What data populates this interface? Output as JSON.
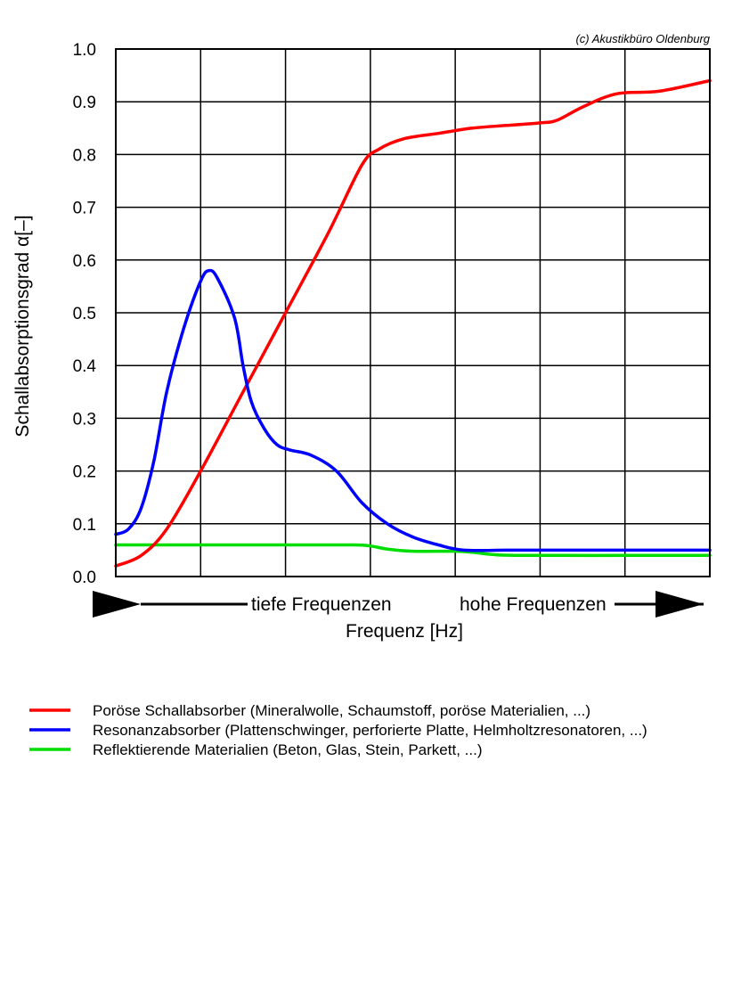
{
  "chart_data": {
    "type": "line",
    "copyright": "(c) Akustikbüro Oldenburg",
    "ylabel": "Schallabsorptionsgrad α[–]",
    "xlabel": "Frequenz [Hz]",
    "x_annotation_low": "tiefe Frequenzen",
    "x_annotation_high": "hohe Frequenzen",
    "xlim": [
      0,
      7
    ],
    "ylim": [
      0,
      1
    ],
    "yticks": [
      "0.0",
      "0.1",
      "0.2",
      "0.3",
      "0.4",
      "0.5",
      "0.6",
      "0.7",
      "0.8",
      "0.9",
      "1.0"
    ],
    "grid": true,
    "legend_position": "bottom-left",
    "series": [
      {
        "name": "Poröse Schallabsorber (Mineralwolle, Schaumstoff, poröse Materialien, ...)",
        "color": "#ff0000",
        "x": [
          0,
          0.3,
          0.6,
          1.0,
          1.5,
          2.0,
          2.5,
          2.9,
          3.1,
          3.4,
          3.8,
          4.2,
          4.6,
          5.0,
          5.2,
          5.5,
          5.9,
          6.4,
          7.0
        ],
        "y": [
          0.02,
          0.04,
          0.09,
          0.2,
          0.35,
          0.5,
          0.65,
          0.78,
          0.81,
          0.83,
          0.84,
          0.85,
          0.855,
          0.86,
          0.865,
          0.89,
          0.915,
          0.92,
          0.94
        ]
      },
      {
        "name": "Resonanzabsorber (Plattenschwinger, perforierte Platte, Helmholtzresonatoren, ...)",
        "color": "#0000ff",
        "x": [
          0,
          0.15,
          0.3,
          0.45,
          0.6,
          0.8,
          1.0,
          1.1,
          1.2,
          1.4,
          1.5,
          1.6,
          1.75,
          1.9,
          2.05,
          2.3,
          2.6,
          2.9,
          3.2,
          3.5,
          3.8,
          4.1,
          4.6,
          5.0,
          6.0,
          7.0
        ],
        "y": [
          0.08,
          0.09,
          0.13,
          0.22,
          0.35,
          0.47,
          0.56,
          0.58,
          0.565,
          0.49,
          0.4,
          0.33,
          0.28,
          0.25,
          0.24,
          0.23,
          0.2,
          0.14,
          0.1,
          0.075,
          0.06,
          0.05,
          0.05,
          0.05,
          0.05,
          0.05
        ]
      },
      {
        "name": "Reflektierende Materialien (Beton, Glas, Stein, Parkett, ...)",
        "color": "#00dd00",
        "x": [
          0,
          1.0,
          2.0,
          2.8,
          3.0,
          3.2,
          3.5,
          4.0,
          4.2,
          4.5,
          5.0,
          6.0,
          7.0
        ],
        "y": [
          0.06,
          0.06,
          0.06,
          0.06,
          0.058,
          0.052,
          0.048,
          0.048,
          0.046,
          0.041,
          0.04,
          0.04,
          0.04
        ]
      }
    ]
  }
}
